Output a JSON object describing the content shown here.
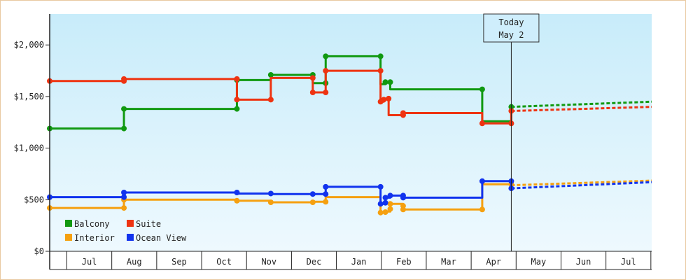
{
  "chart_data": {
    "type": "line",
    "title": "",
    "xlabel": "",
    "ylabel": "",
    "ylim": [
      0,
      2300
    ],
    "y_ticks": [
      0,
      500,
      1000,
      1500,
      2000
    ],
    "y_tick_labels": [
      "$0",
      "$500",
      "$1,000",
      "$1,500",
      "$2,000"
    ],
    "month_labels": [
      "Jul",
      "Aug",
      "Sep",
      "Oct",
      "Nov",
      "Dec",
      "Jan",
      "Feb",
      "Mar",
      "Apr",
      "May",
      "Jun",
      "Jul"
    ],
    "x_range_days": [
      0,
      373
    ],
    "today": {
      "label_line1": "Today",
      "label_line2": "May 2",
      "day": 286
    },
    "grid": false,
    "legend_position": "bottom-left",
    "series": [
      {
        "name": "Balcony",
        "color": "#119911",
        "points": [
          [
            0,
            1190
          ],
          [
            46,
            1190
          ],
          [
            46,
            1380
          ],
          [
            116,
            1380
          ],
          [
            116,
            1660
          ],
          [
            137,
            1660
          ],
          [
            137,
            1710
          ],
          [
            163,
            1710
          ],
          [
            163,
            1630
          ],
          [
            171,
            1630
          ],
          [
            171,
            1890
          ],
          [
            205,
            1890
          ],
          [
            205,
            1620
          ],
          [
            208,
            1620
          ],
          [
            208,
            1640
          ],
          [
            211,
            1640
          ],
          [
            211,
            1570
          ],
          [
            268,
            1570
          ],
          [
            268,
            1260
          ],
          [
            286,
            1260
          ],
          [
            286,
            1400
          ]
        ],
        "markers": [
          [
            0,
            1190
          ],
          [
            46,
            1190
          ],
          [
            46,
            1380
          ],
          [
            116,
            1380
          ],
          [
            116,
            1660
          ],
          [
            137,
            1710
          ],
          [
            163,
            1710
          ],
          [
            171,
            1630
          ],
          [
            171,
            1890
          ],
          [
            205,
            1890
          ],
          [
            208,
            1640
          ],
          [
            211,
            1640
          ],
          [
            268,
            1570
          ],
          [
            286,
            1400
          ]
        ],
        "forecast": [
          [
            286,
            1400
          ],
          [
            373,
            1450
          ]
        ]
      },
      {
        "name": "Suite",
        "color": "#ee3311",
        "points": [
          [
            0,
            1650
          ],
          [
            46,
            1650
          ],
          [
            46,
            1670
          ],
          [
            116,
            1670
          ],
          [
            116,
            1470
          ],
          [
            137,
            1470
          ],
          [
            137,
            1680
          ],
          [
            163,
            1680
          ],
          [
            163,
            1540
          ],
          [
            171,
            1540
          ],
          [
            171,
            1750
          ],
          [
            205,
            1750
          ],
          [
            205,
            1450
          ],
          [
            207,
            1450
          ],
          [
            207,
            1480
          ],
          [
            210,
            1480
          ],
          [
            210,
            1320
          ],
          [
            219,
            1320
          ],
          [
            219,
            1340
          ],
          [
            268,
            1340
          ],
          [
            268,
            1240
          ],
          [
            286,
            1240
          ],
          [
            286,
            1360
          ]
        ],
        "markers": [
          [
            0,
            1650
          ],
          [
            46,
            1650
          ],
          [
            46,
            1670
          ],
          [
            116,
            1670
          ],
          [
            116,
            1470
          ],
          [
            137,
            1470
          ],
          [
            163,
            1680
          ],
          [
            163,
            1540
          ],
          [
            171,
            1540
          ],
          [
            171,
            1750
          ],
          [
            205,
            1750
          ],
          [
            205,
            1450
          ],
          [
            207,
            1470
          ],
          [
            210,
            1480
          ],
          [
            219,
            1320
          ],
          [
            219,
            1340
          ],
          [
            268,
            1240
          ],
          [
            286,
            1240
          ],
          [
            286,
            1360
          ]
        ],
        "forecast": [
          [
            286,
            1360
          ],
          [
            373,
            1400
          ]
        ]
      },
      {
        "name": "Interior",
        "color": "#f5a010",
        "points": [
          [
            0,
            420
          ],
          [
            46,
            420
          ],
          [
            46,
            500
          ],
          [
            116,
            500
          ],
          [
            116,
            490
          ],
          [
            137,
            490
          ],
          [
            137,
            475
          ],
          [
            163,
            475
          ],
          [
            163,
            480
          ],
          [
            171,
            480
          ],
          [
            171,
            525
          ],
          [
            205,
            525
          ],
          [
            205,
            375
          ],
          [
            208,
            375
          ],
          [
            208,
            385
          ],
          [
            211,
            385
          ],
          [
            211,
            460
          ],
          [
            219,
            460
          ],
          [
            219,
            405
          ],
          [
            268,
            405
          ],
          [
            268,
            650
          ],
          [
            286,
            650
          ]
        ],
        "markers": [
          [
            0,
            420
          ],
          [
            46,
            420
          ],
          [
            46,
            500
          ],
          [
            116,
            490
          ],
          [
            137,
            475
          ],
          [
            163,
            475
          ],
          [
            171,
            480
          ],
          [
            205,
            375
          ],
          [
            208,
            380
          ],
          [
            211,
            410
          ],
          [
            211,
            460
          ],
          [
            219,
            440
          ],
          [
            219,
            405
          ],
          [
            268,
            405
          ],
          [
            286,
            650
          ]
        ],
        "forecast": [
          [
            286,
            640
          ],
          [
            373,
            685
          ]
        ]
      },
      {
        "name": "Ocean View",
        "color": "#1133ee",
        "points": [
          [
            0,
            525
          ],
          [
            46,
            525
          ],
          [
            46,
            570
          ],
          [
            116,
            570
          ],
          [
            116,
            560
          ],
          [
            137,
            560
          ],
          [
            137,
            555
          ],
          [
            163,
            555
          ],
          [
            163,
            555
          ],
          [
            171,
            555
          ],
          [
            171,
            625
          ],
          [
            205,
            625
          ],
          [
            205,
            460
          ],
          [
            208,
            460
          ],
          [
            208,
            520
          ],
          [
            211,
            520
          ],
          [
            211,
            540
          ],
          [
            219,
            540
          ],
          [
            219,
            520
          ],
          [
            268,
            520
          ],
          [
            268,
            680
          ],
          [
            286,
            680
          ],
          [
            286,
            610
          ]
        ],
        "markers": [
          [
            0,
            525
          ],
          [
            46,
            525
          ],
          [
            46,
            570
          ],
          [
            116,
            570
          ],
          [
            137,
            560
          ],
          [
            163,
            555
          ],
          [
            171,
            555
          ],
          [
            171,
            625
          ],
          [
            205,
            625
          ],
          [
            205,
            460
          ],
          [
            208,
            470
          ],
          [
            208,
            520
          ],
          [
            211,
            540
          ],
          [
            219,
            540
          ],
          [
            219,
            520
          ],
          [
            268,
            680
          ],
          [
            286,
            680
          ],
          [
            286,
            610
          ]
        ],
        "forecast": [
          [
            286,
            610
          ],
          [
            373,
            670
          ]
        ]
      }
    ]
  }
}
